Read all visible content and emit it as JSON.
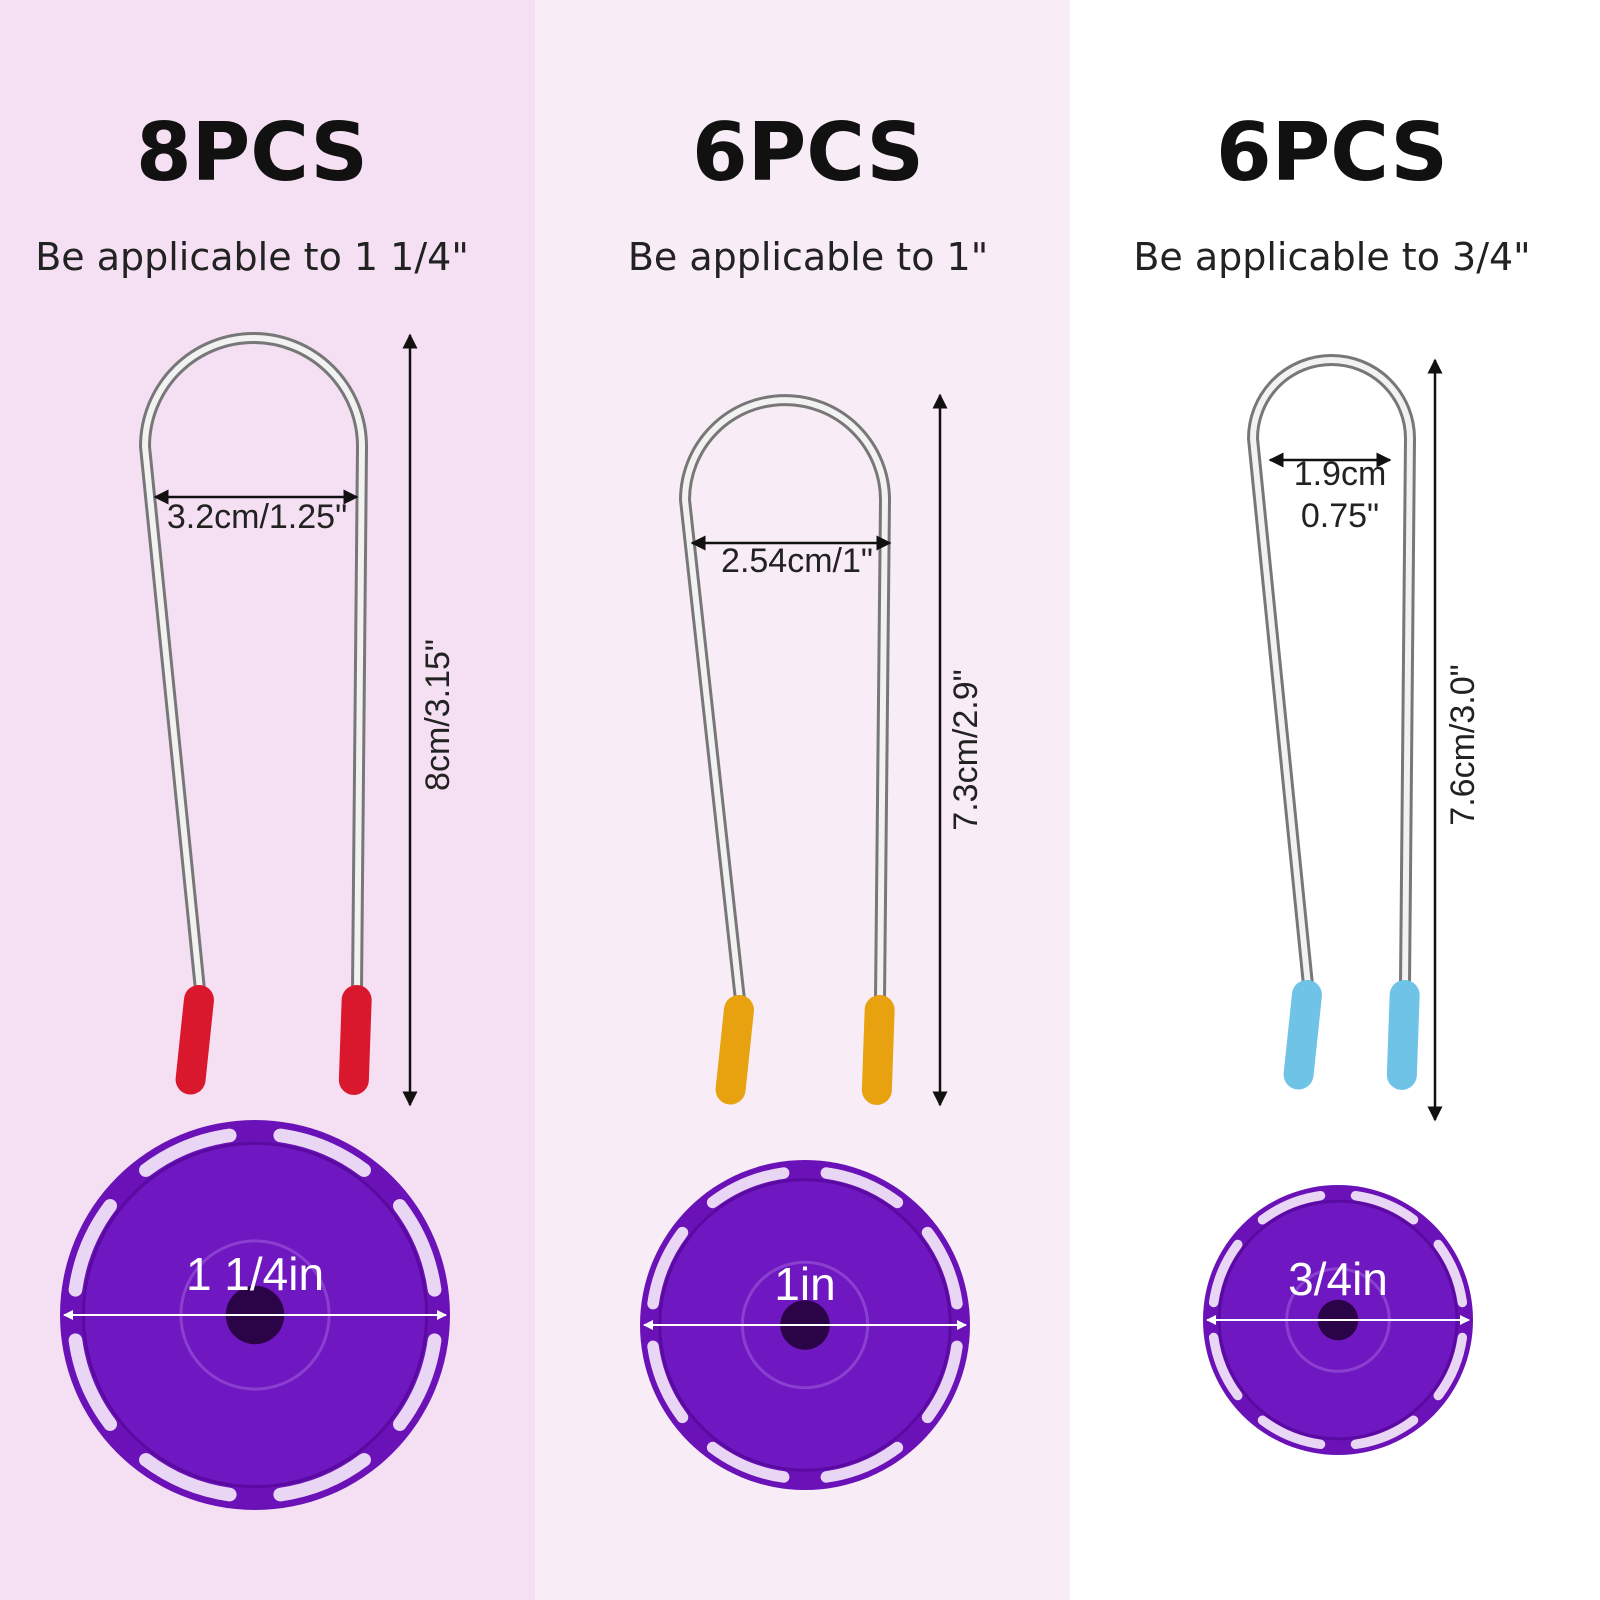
{
  "columns": [
    {
      "count": "8PCS",
      "caption": "Be applicable to 1 1/4\"",
      "width_label": [
        "3.2cm/1.25\""
      ],
      "height_label": "8cm/3.15\"",
      "disc_label": "1 1/4in"
    },
    {
      "count": "6PCS",
      "caption": "Be applicable to 1\"",
      "width_label": [
        "2.54cm/1\""
      ],
      "height_label": "7.3cm/2.9\"",
      "disc_label": "1in"
    },
    {
      "count": "6PCS",
      "caption": "Be applicable to 3/4\"",
      "width_label": [
        "1.9cm",
        "0.75\""
      ],
      "height_label": "7.6cm/3.0\"",
      "disc_label": "3/4in"
    }
  ]
}
